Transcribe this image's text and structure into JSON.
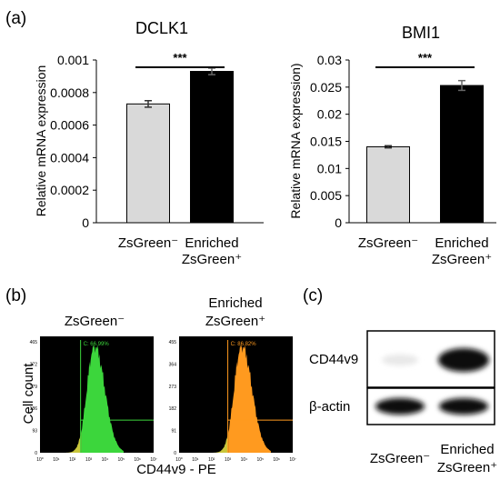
{
  "panels": {
    "a": "(a)",
    "b": "(b)",
    "c": "(c)"
  },
  "colors": {
    "bar_negative": "#d9d9d9",
    "bar_positive": "#000000",
    "flow_green": "#3cd63c",
    "flow_orange": "#ff9a1f",
    "flow_yellow": "#c9c63b",
    "flow_bg": "#000000"
  },
  "chart_data": [
    {
      "type": "bar",
      "title": "DCLK1",
      "ylabel": "Relative mRNA expression",
      "xlabel": "",
      "categories": [
        "ZsGreen⁻",
        "Enriched ZsGreen⁺"
      ],
      "category_lines": [
        [
          "ZsGreen⁻"
        ],
        [
          "Enriched",
          "ZsGreen⁺"
        ]
      ],
      "values": [
        0.00073,
        0.00093
      ],
      "errors": [
        2e-05,
        2e-05
      ],
      "ylim": [
        0,
        0.001
      ],
      "yticks": [
        "0",
        "0.0002",
        "0.0004",
        "0.0006",
        "0.0008",
        "0.001"
      ],
      "significance": "***"
    },
    {
      "type": "bar",
      "title": "BMI1",
      "ylabel": "Relative mRNA expression)",
      "xlabel": "",
      "categories": [
        "ZsGreen⁻",
        "Enriched ZsGreen⁺"
      ],
      "category_lines": [
        [
          "ZsGreen⁻"
        ],
        [
          "Enriched",
          "ZsGreen⁺"
        ]
      ],
      "values": [
        0.014,
        0.0253
      ],
      "errors": [
        0.0002,
        0.0009
      ],
      "ylim": [
        0,
        0.03
      ],
      "yticks": [
        "0",
        "0.005",
        "0.01",
        "0.015",
        "0.02",
        "0.025",
        "0.03"
      ],
      "significance": "***"
    }
  ],
  "flow": {
    "ylabel": "Cell count",
    "xlabel": "CD44v9 - PE",
    "xticks": [
      "10⁰",
      "10¹",
      "10²",
      "10³",
      "10⁴",
      "10⁵",
      "10⁶",
      "10⁷"
    ],
    "plots": [
      {
        "title_lines": [
          "ZsGreen⁻"
        ],
        "gate_label": "C: 66.99%",
        "yticks": [
          "0",
          "93",
          "186",
          "279",
          "372",
          "465"
        ],
        "peak_log": 3.35,
        "color": "#3cd63c"
      },
      {
        "title_lines": [
          "Enriched",
          "ZsGreen⁺"
        ],
        "gate_label": "C: 86.82%",
        "yticks": [
          "0",
          "91",
          "182",
          "273",
          "364",
          "455"
        ],
        "peak_log": 3.85,
        "color": "#ff9a1f"
      }
    ]
  },
  "western": {
    "rows": [
      "CD44v9",
      "β-actin"
    ],
    "lanes": [
      [
        "ZsGreen⁻"
      ],
      [
        "Enriched",
        "ZsGreen⁺"
      ]
    ]
  }
}
